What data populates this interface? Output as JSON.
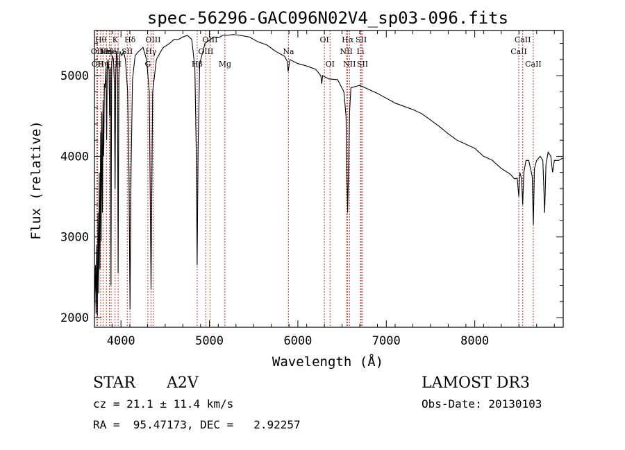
{
  "chart_data": {
    "type": "line",
    "title": "spec-56296-GAC096N02V4_sp03-096.fits",
    "xlabel": "Wavelength (Å)",
    "ylabel": "Flux (relative)",
    "xlim": [
      3700,
      9000
    ],
    "ylim": [
      1880,
      5560
    ],
    "x_ticks": [
      4000,
      5000,
      6000,
      7000,
      8000
    ],
    "y_ticks": [
      2000,
      3000,
      4000,
      5000
    ],
    "grid": false,
    "series": [
      {
        "name": "flux",
        "points": [
          [
            3700,
            2100
          ],
          [
            3712,
            2650
          ],
          [
            3718,
            2050
          ],
          [
            3725,
            2900
          ],
          [
            3733,
            2020
          ],
          [
            3740,
            3300
          ],
          [
            3748,
            2300
          ],
          [
            3755,
            3800
          ],
          [
            3762,
            2600
          ],
          [
            3770,
            4300
          ],
          [
            3775,
            2950
          ],
          [
            3783,
            4550
          ],
          [
            3790,
            3300
          ],
          [
            3797,
            4700
          ],
          [
            3805,
            4000
          ],
          [
            3812,
            4900
          ],
          [
            3820,
            4850
          ],
          [
            3830,
            5100
          ],
          [
            3838,
            4200
          ],
          [
            3845,
            5150
          ],
          [
            3855,
            5200
          ],
          [
            3865,
            5050
          ],
          [
            3872,
            4500
          ],
          [
            3880,
            5100
          ],
          [
            3887,
            2400
          ],
          [
            3895,
            5150
          ],
          [
            3905,
            5250
          ],
          [
            3915,
            5200
          ],
          [
            3925,
            4900
          ],
          [
            3933,
            3600
          ],
          [
            3940,
            5000
          ],
          [
            3950,
            5300
          ],
          [
            3960,
            5200
          ],
          [
            3968,
            2550
          ],
          [
            3976,
            5000
          ],
          [
            3990,
            5300
          ],
          [
            4010,
            5250
          ],
          [
            4030,
            5300
          ],
          [
            4050,
            5200
          ],
          [
            4075,
            4800
          ],
          [
            4090,
            3800
          ],
          [
            4102,
            2100
          ],
          [
            4114,
            3800
          ],
          [
            4130,
            4950
          ],
          [
            4160,
            5250
          ],
          [
            4200,
            5300
          ],
          [
            4250,
            5350
          ],
          [
            4290,
            5200
          ],
          [
            4320,
            4800
          ],
          [
            4340,
            2350
          ],
          [
            4358,
            4800
          ],
          [
            4400,
            5200
          ],
          [
            4450,
            5300
          ],
          [
            4480,
            5350
          ],
          [
            4550,
            5400
          ],
          [
            4600,
            5450
          ],
          [
            4650,
            5450
          ],
          [
            4700,
            5480
          ],
          [
            4750,
            5500
          ],
          [
            4800,
            5450
          ],
          [
            4835,
            5100
          ],
          [
            4850,
            4100
          ],
          [
            4861,
            2650
          ],
          [
            4872,
            4100
          ],
          [
            4890,
            5150
          ],
          [
            4950,
            5400
          ],
          [
            5050,
            5480
          ],
          [
            5100,
            5470
          ],
          [
            5150,
            5500
          ],
          [
            5200,
            5500
          ],
          [
            5270,
            5510
          ],
          [
            5350,
            5500
          ],
          [
            5450,
            5480
          ],
          [
            5550,
            5420
          ],
          [
            5650,
            5380
          ],
          [
            5750,
            5300
          ],
          [
            5850,
            5240
          ],
          [
            5880,
            5180
          ],
          [
            5890,
            5050
          ],
          [
            5895,
            5090
          ],
          [
            5910,
            5200
          ],
          [
            6000,
            5150
          ],
          [
            6100,
            5120
          ],
          [
            6200,
            5080
          ],
          [
            6260,
            5000
          ],
          [
            6270,
            4900
          ],
          [
            6280,
            5000
          ],
          [
            6350,
            4960
          ],
          [
            6450,
            4950
          ],
          [
            6520,
            4800
          ],
          [
            6545,
            4500
          ],
          [
            6555,
            3800
          ],
          [
            6563,
            3300
          ],
          [
            6572,
            3800
          ],
          [
            6585,
            4550
          ],
          [
            6600,
            4850
          ],
          [
            6700,
            4880
          ],
          [
            6800,
            4830
          ],
          [
            6900,
            4780
          ],
          [
            7000,
            4720
          ],
          [
            7100,
            4660
          ],
          [
            7200,
            4620
          ],
          [
            7300,
            4580
          ],
          [
            7400,
            4530
          ],
          [
            7500,
            4450
          ],
          [
            7600,
            4370
          ],
          [
            7700,
            4280
          ],
          [
            7800,
            4200
          ],
          [
            7900,
            4150
          ],
          [
            8000,
            4100
          ],
          [
            8100,
            4000
          ],
          [
            8200,
            3950
          ],
          [
            8300,
            3850
          ],
          [
            8400,
            3780
          ],
          [
            8450,
            3720
          ],
          [
            8480,
            3730
          ],
          [
            8498,
            3500
          ],
          [
            8510,
            3800
          ],
          [
            8530,
            3720
          ],
          [
            8542,
            3400
          ],
          [
            8555,
            3800
          ],
          [
            8580,
            3950
          ],
          [
            8610,
            3950
          ],
          [
            8630,
            3850
          ],
          [
            8650,
            3750
          ],
          [
            8662,
            3150
          ],
          [
            8675,
            3850
          ],
          [
            8700,
            3950
          ],
          [
            8740,
            4000
          ],
          [
            8770,
            3950
          ],
          [
            8790,
            3300
          ],
          [
            8805,
            3900
          ],
          [
            8830,
            4050
          ],
          [
            8860,
            4000
          ],
          [
            8880,
            3800
          ],
          [
            8900,
            3950
          ],
          [
            8950,
            3950
          ],
          [
            9000,
            3980
          ]
        ]
      }
    ],
    "lines": [
      {
        "x": 3728,
        "label": "OII",
        "row": 2
      },
      {
        "x": 3736,
        "label": "OII",
        "row": 3
      },
      {
        "x": 3771,
        "label": "Hθ",
        "row": 1
      },
      {
        "x": 3797,
        "label": "Hη",
        "row": 3
      },
      {
        "x": 3835,
        "label": "Hη",
        "row": 2
      },
      {
        "x": 3869,
        "label": "NeIII",
        "row": 2
      },
      {
        "x": 3889,
        "label": "He",
        "row": 2
      },
      {
        "x": 3934,
        "label": "K",
        "row": 1
      },
      {
        "x": 3968,
        "label": "H",
        "row": 3
      },
      {
        "x": 4071,
        "label": "SII",
        "row": 2
      },
      {
        "x": 4102,
        "label": "Hδ",
        "row": 1
      },
      {
        "x": 4304,
        "label": "G",
        "row": 3
      },
      {
        "x": 4340,
        "label": "Hγ",
        "row": 2
      },
      {
        "x": 4363,
        "label": "OIII",
        "row": 1
      },
      {
        "x": 4861,
        "label": "Hβ",
        "row": 3
      },
      {
        "x": 4959,
        "label": "OIII",
        "row": 2
      },
      {
        "x": 5007,
        "label": "OIII",
        "row": 1
      },
      {
        "x": 5175,
        "label": "Mg",
        "row": 3
      },
      {
        "x": 5894,
        "label": "Na",
        "row": 2
      },
      {
        "x": 6300,
        "label": "OI",
        "row": 1
      },
      {
        "x": 6364,
        "label": "OI",
        "row": 3
      },
      {
        "x": 6548,
        "label": "NII",
        "row": 2
      },
      {
        "x": 6563,
        "label": "Hα",
        "row": 1
      },
      {
        "x": 6584,
        "label": "NII",
        "row": 3
      },
      {
        "x": 6708,
        "label": "Li",
        "row": 2
      },
      {
        "x": 6716,
        "label": "SII",
        "row": 1
      },
      {
        "x": 6731,
        "label": "SII",
        "row": 3
      },
      {
        "x": 8498,
        "label": "CaII",
        "row": 2
      },
      {
        "x": 8542,
        "label": "CaII",
        "row": 1
      },
      {
        "x": 8662,
        "label": "CaII",
        "row": 3
      }
    ]
  },
  "info": {
    "class": "STAR",
    "subclass": "A2V",
    "survey": "LAMOST DR3",
    "cz": "cz = 21.1 ± 11.4 km/s",
    "obs_date": "Obs-Date: 20130103",
    "radec": "RA =  95.47173, DEC =   2.92257"
  }
}
